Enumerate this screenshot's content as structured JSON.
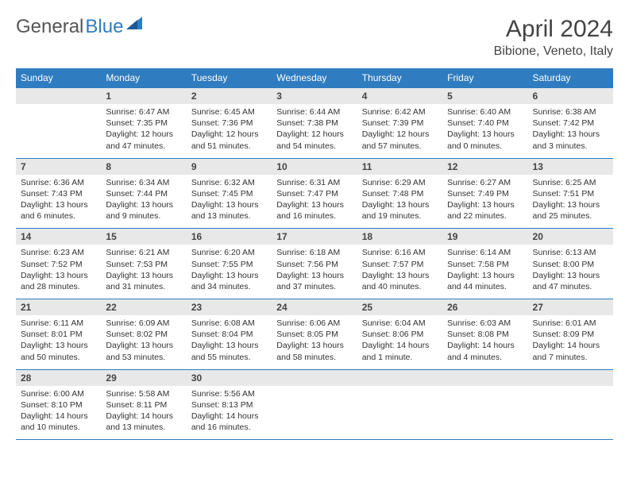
{
  "logo": {
    "general": "General",
    "blue": "Blue"
  },
  "title": "April 2024",
  "location": "Bibione, Veneto, Italy",
  "colors": {
    "header_bg": "#2f7cc0",
    "header_text": "#ffffff",
    "daynum_bg": "#e8e8e8",
    "text": "#333333",
    "border": "#2f7cc0",
    "logo_gray": "#555555",
    "logo_blue": "#2f7cc0",
    "title_color": "#444444"
  },
  "day_headers": [
    "Sunday",
    "Monday",
    "Tuesday",
    "Wednesday",
    "Thursday",
    "Friday",
    "Saturday"
  ],
  "weeks": [
    [
      null,
      {
        "n": "1",
        "sunrise": "Sunrise: 6:47 AM",
        "sunset": "Sunset: 7:35 PM",
        "day1": "Daylight: 12 hours",
        "day2": "and 47 minutes."
      },
      {
        "n": "2",
        "sunrise": "Sunrise: 6:45 AM",
        "sunset": "Sunset: 7:36 PM",
        "day1": "Daylight: 12 hours",
        "day2": "and 51 minutes."
      },
      {
        "n": "3",
        "sunrise": "Sunrise: 6:44 AM",
        "sunset": "Sunset: 7:38 PM",
        "day1": "Daylight: 12 hours",
        "day2": "and 54 minutes."
      },
      {
        "n": "4",
        "sunrise": "Sunrise: 6:42 AM",
        "sunset": "Sunset: 7:39 PM",
        "day1": "Daylight: 12 hours",
        "day2": "and 57 minutes."
      },
      {
        "n": "5",
        "sunrise": "Sunrise: 6:40 AM",
        "sunset": "Sunset: 7:40 PM",
        "day1": "Daylight: 13 hours",
        "day2": "and 0 minutes."
      },
      {
        "n": "6",
        "sunrise": "Sunrise: 6:38 AM",
        "sunset": "Sunset: 7:42 PM",
        "day1": "Daylight: 13 hours",
        "day2": "and 3 minutes."
      }
    ],
    [
      {
        "n": "7",
        "sunrise": "Sunrise: 6:36 AM",
        "sunset": "Sunset: 7:43 PM",
        "day1": "Daylight: 13 hours",
        "day2": "and 6 minutes."
      },
      {
        "n": "8",
        "sunrise": "Sunrise: 6:34 AM",
        "sunset": "Sunset: 7:44 PM",
        "day1": "Daylight: 13 hours",
        "day2": "and 9 minutes."
      },
      {
        "n": "9",
        "sunrise": "Sunrise: 6:32 AM",
        "sunset": "Sunset: 7:45 PM",
        "day1": "Daylight: 13 hours",
        "day2": "and 13 minutes."
      },
      {
        "n": "10",
        "sunrise": "Sunrise: 6:31 AM",
        "sunset": "Sunset: 7:47 PM",
        "day1": "Daylight: 13 hours",
        "day2": "and 16 minutes."
      },
      {
        "n": "11",
        "sunrise": "Sunrise: 6:29 AM",
        "sunset": "Sunset: 7:48 PM",
        "day1": "Daylight: 13 hours",
        "day2": "and 19 minutes."
      },
      {
        "n": "12",
        "sunrise": "Sunrise: 6:27 AM",
        "sunset": "Sunset: 7:49 PM",
        "day1": "Daylight: 13 hours",
        "day2": "and 22 minutes."
      },
      {
        "n": "13",
        "sunrise": "Sunrise: 6:25 AM",
        "sunset": "Sunset: 7:51 PM",
        "day1": "Daylight: 13 hours",
        "day2": "and 25 minutes."
      }
    ],
    [
      {
        "n": "14",
        "sunrise": "Sunrise: 6:23 AM",
        "sunset": "Sunset: 7:52 PM",
        "day1": "Daylight: 13 hours",
        "day2": "and 28 minutes."
      },
      {
        "n": "15",
        "sunrise": "Sunrise: 6:21 AM",
        "sunset": "Sunset: 7:53 PM",
        "day1": "Daylight: 13 hours",
        "day2": "and 31 minutes."
      },
      {
        "n": "16",
        "sunrise": "Sunrise: 6:20 AM",
        "sunset": "Sunset: 7:55 PM",
        "day1": "Daylight: 13 hours",
        "day2": "and 34 minutes."
      },
      {
        "n": "17",
        "sunrise": "Sunrise: 6:18 AM",
        "sunset": "Sunset: 7:56 PM",
        "day1": "Daylight: 13 hours",
        "day2": "and 37 minutes."
      },
      {
        "n": "18",
        "sunrise": "Sunrise: 6:16 AM",
        "sunset": "Sunset: 7:57 PM",
        "day1": "Daylight: 13 hours",
        "day2": "and 40 minutes."
      },
      {
        "n": "19",
        "sunrise": "Sunrise: 6:14 AM",
        "sunset": "Sunset: 7:58 PM",
        "day1": "Daylight: 13 hours",
        "day2": "and 44 minutes."
      },
      {
        "n": "20",
        "sunrise": "Sunrise: 6:13 AM",
        "sunset": "Sunset: 8:00 PM",
        "day1": "Daylight: 13 hours",
        "day2": "and 47 minutes."
      }
    ],
    [
      {
        "n": "21",
        "sunrise": "Sunrise: 6:11 AM",
        "sunset": "Sunset: 8:01 PM",
        "day1": "Daylight: 13 hours",
        "day2": "and 50 minutes."
      },
      {
        "n": "22",
        "sunrise": "Sunrise: 6:09 AM",
        "sunset": "Sunset: 8:02 PM",
        "day1": "Daylight: 13 hours",
        "day2": "and 53 minutes."
      },
      {
        "n": "23",
        "sunrise": "Sunrise: 6:08 AM",
        "sunset": "Sunset: 8:04 PM",
        "day1": "Daylight: 13 hours",
        "day2": "and 55 minutes."
      },
      {
        "n": "24",
        "sunrise": "Sunrise: 6:06 AM",
        "sunset": "Sunset: 8:05 PM",
        "day1": "Daylight: 13 hours",
        "day2": "and 58 minutes."
      },
      {
        "n": "25",
        "sunrise": "Sunrise: 6:04 AM",
        "sunset": "Sunset: 8:06 PM",
        "day1": "Daylight: 14 hours",
        "day2": "and 1 minute."
      },
      {
        "n": "26",
        "sunrise": "Sunrise: 6:03 AM",
        "sunset": "Sunset: 8:08 PM",
        "day1": "Daylight: 14 hours",
        "day2": "and 4 minutes."
      },
      {
        "n": "27",
        "sunrise": "Sunrise: 6:01 AM",
        "sunset": "Sunset: 8:09 PM",
        "day1": "Daylight: 14 hours",
        "day2": "and 7 minutes."
      }
    ],
    [
      {
        "n": "28",
        "sunrise": "Sunrise: 6:00 AM",
        "sunset": "Sunset: 8:10 PM",
        "day1": "Daylight: 14 hours",
        "day2": "and 10 minutes."
      },
      {
        "n": "29",
        "sunrise": "Sunrise: 5:58 AM",
        "sunset": "Sunset: 8:11 PM",
        "day1": "Daylight: 14 hours",
        "day2": "and 13 minutes."
      },
      {
        "n": "30",
        "sunrise": "Sunrise: 5:56 AM",
        "sunset": "Sunset: 8:13 PM",
        "day1": "Daylight: 14 hours",
        "day2": "and 16 minutes."
      },
      null,
      null,
      null,
      null
    ]
  ]
}
